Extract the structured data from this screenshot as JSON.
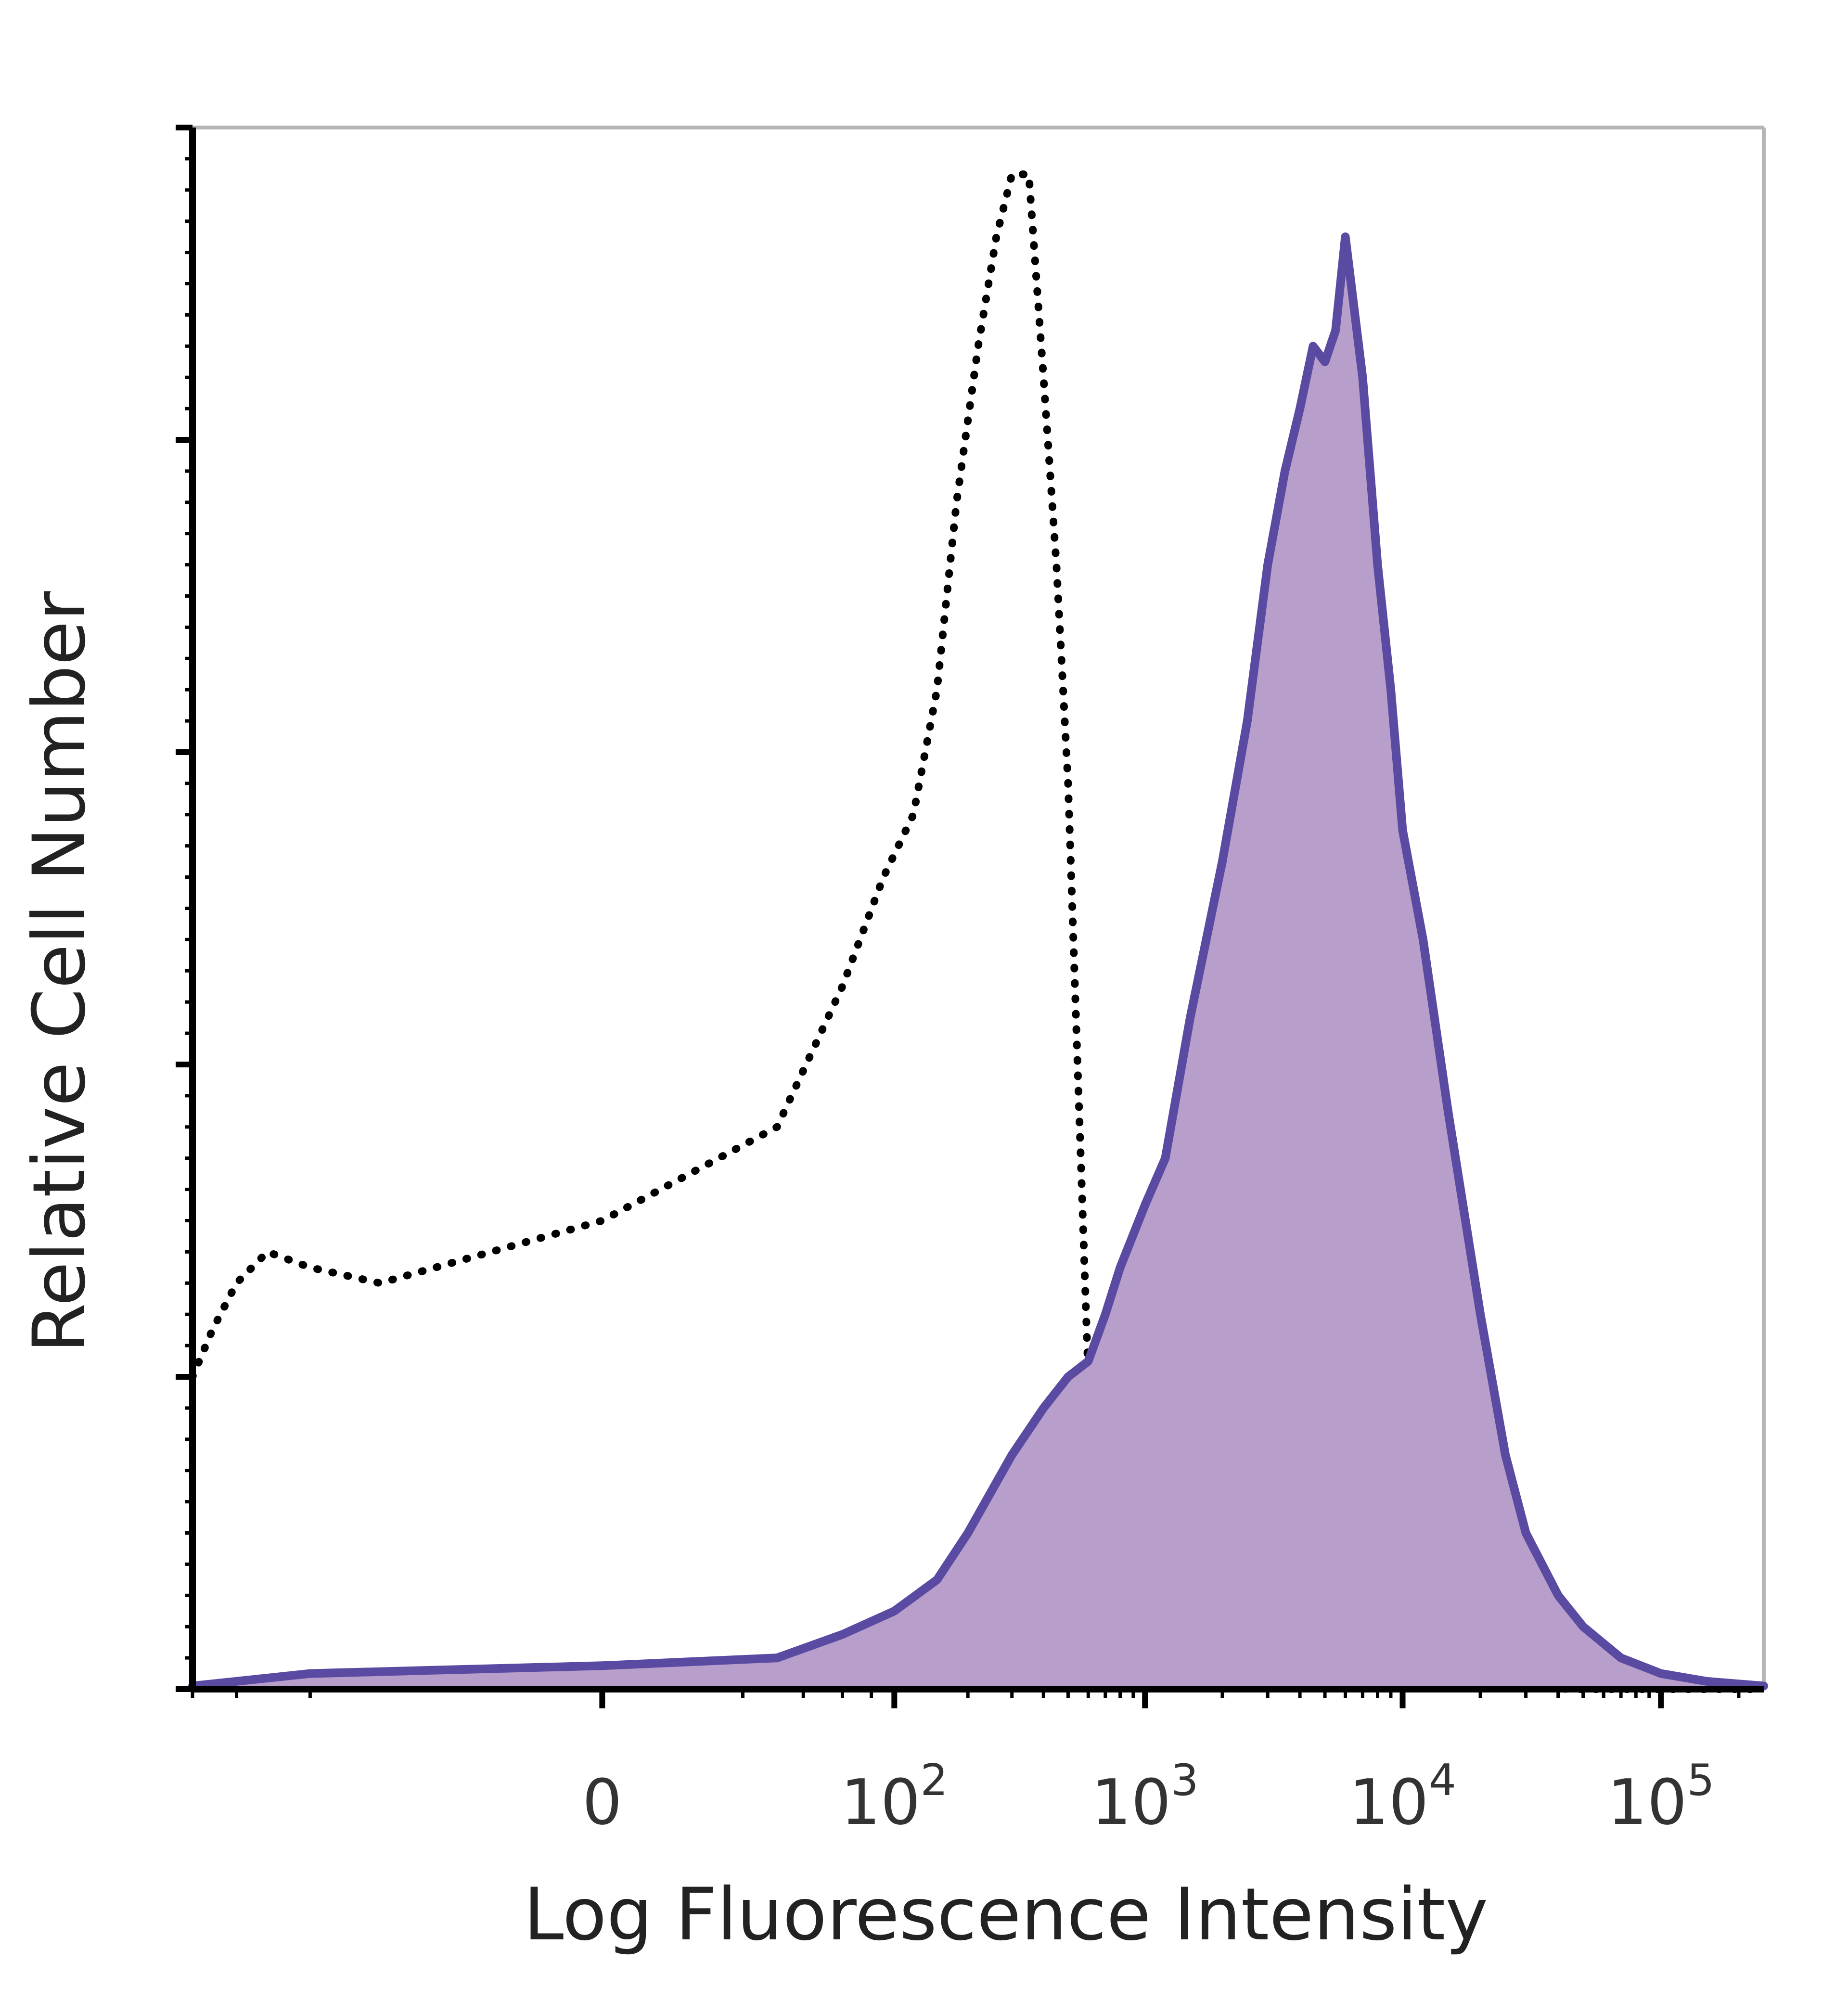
{
  "chart_data": {
    "type": "area",
    "title": "",
    "xlabel": "Log Fluorescence Intensity",
    "ylabel": "Relative Cell Number",
    "x_scale": "biexponential",
    "x_ticks": [
      {
        "value": 0,
        "label": "0"
      },
      {
        "value": 100,
        "label": "10",
        "exp": "2"
      },
      {
        "value": 1000,
        "label": "10",
        "exp": "3"
      },
      {
        "value": 10000,
        "label": "10",
        "exp": "4"
      },
      {
        "value": 100000,
        "label": "10",
        "exp": "5"
      }
    ],
    "xlim": [
      -300,
      250000
    ],
    "ylim": [
      0,
      1.0
    ],
    "y_ticks": [
      0,
      0.2,
      0.4,
      0.6,
      0.8,
      1.0
    ],
    "grid": false,
    "legend": "none",
    "series": [
      {
        "style": "dotted",
        "color": "#000000",
        "fill": "none",
        "x": [
          -300,
          -250,
          -200,
          -150,
          -100,
          -50,
          0,
          30,
          60,
          90,
          120,
          150,
          180,
          220,
          260,
          300,
          350,
          400,
          450,
          500,
          550,
          600,
          700,
          800,
          900,
          1000,
          1200,
          1500,
          2000,
          3000,
          5000,
          10000,
          20000,
          50000,
          100000,
          250000
        ],
        "y": [
          0.2,
          0.23,
          0.26,
          0.28,
          0.27,
          0.26,
          0.3,
          0.36,
          0.45,
          0.52,
          0.56,
          0.64,
          0.76,
          0.86,
          0.93,
          0.97,
          0.97,
          0.84,
          0.72,
          0.58,
          0.38,
          0.2,
          0.08,
          0.03,
          0.015,
          0.01,
          0.005,
          0.003,
          0.002,
          0.001,
          0.001,
          0.001,
          0.001,
          0.0,
          0.0,
          0.0
        ]
      },
      {
        "style": "solid",
        "color": "#5b4aa2",
        "fill": "#b89ecb",
        "x": [
          -300,
          -200,
          -100,
          0,
          30,
          60,
          100,
          150,
          200,
          300,
          400,
          500,
          600,
          700,
          800,
          1000,
          1200,
          1500,
          2000,
          2500,
          3000,
          3500,
          4000,
          4500,
          5000,
          5500,
          6000,
          7000,
          8000,
          9000,
          10000,
          12000,
          15000,
          20000,
          25000,
          30000,
          40000,
          50000,
          70000,
          100000,
          150000,
          250000
        ],
        "y": [
          0.002,
          0.005,
          0.01,
          0.015,
          0.02,
          0.035,
          0.05,
          0.07,
          0.1,
          0.15,
          0.18,
          0.2,
          0.21,
          0.24,
          0.27,
          0.31,
          0.34,
          0.43,
          0.53,
          0.62,
          0.72,
          0.78,
          0.82,
          0.86,
          0.85,
          0.87,
          0.93,
          0.84,
          0.72,
          0.64,
          0.55,
          0.48,
          0.37,
          0.24,
          0.15,
          0.1,
          0.06,
          0.04,
          0.02,
          0.01,
          0.005,
          0.002
        ]
      }
    ]
  }
}
